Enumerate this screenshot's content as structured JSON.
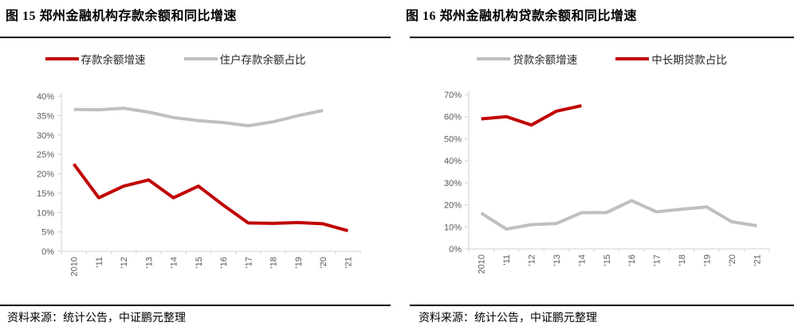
{
  "colors": {
    "accent_red": "#C00000",
    "series_gray": "#BFBFBF",
    "axis_line": "#D9D9D9",
    "tick_text": "#595959"
  },
  "chart_data": [
    {
      "type": "line",
      "title": "图 15 郑州金融机构存款余额和同比增速",
      "source": "资料来源：统计公告，中证鹏元整理",
      "categories": [
        "2010",
        "'11",
        "'12",
        "'13",
        "'14",
        "'15",
        "'16",
        "'17",
        "'18",
        "'19",
        "'20",
        "'21"
      ],
      "series": [
        {
          "name": "存款余额增速",
          "color": "#C00000",
          "values": [
            22.5,
            13.8,
            16.8,
            18.4,
            13.8,
            16.8,
            11.9,
            7.3,
            7.2,
            7.4,
            7.1,
            5.3
          ]
        },
        {
          "name": "住户存款余额占比",
          "color": "#BFBFBF",
          "values": [
            36.6,
            36.5,
            36.9,
            35.9,
            34.5,
            33.7,
            33.2,
            32.4,
            33.4,
            35.0,
            36.3,
            null
          ]
        }
      ],
      "ylim": [
        0,
        40
      ],
      "ytick_step": 5,
      "ytick_suffix": "%",
      "legend_position": "top",
      "grid": false
    },
    {
      "type": "line",
      "title": "图 16 郑州金融机构贷款余额和同比增速",
      "source": "资料来源：统计公告，中证鹏元整理",
      "categories": [
        "2010",
        "'11",
        "'12",
        "'13",
        "'14",
        "'15",
        "'16",
        "'17",
        "'18",
        "'19",
        "'20",
        "'21"
      ],
      "series": [
        {
          "name": "贷款余额增速",
          "color": "#BFBFBF",
          "values": [
            16.2,
            9.0,
            11.0,
            11.5,
            16.4,
            16.5,
            21.9,
            16.8,
            18.0,
            19.0,
            12.3,
            10.5
          ]
        },
        {
          "name": "中长期贷款占比",
          "color": "#C00000",
          "values": [
            59.0,
            60.0,
            56.2,
            62.5,
            65.0,
            null,
            null,
            null,
            null,
            null,
            null,
            null
          ]
        }
      ],
      "ylim": [
        0,
        70
      ],
      "ytick_step": 10,
      "ytick_suffix": "%",
      "legend_position": "top",
      "grid": false
    }
  ]
}
